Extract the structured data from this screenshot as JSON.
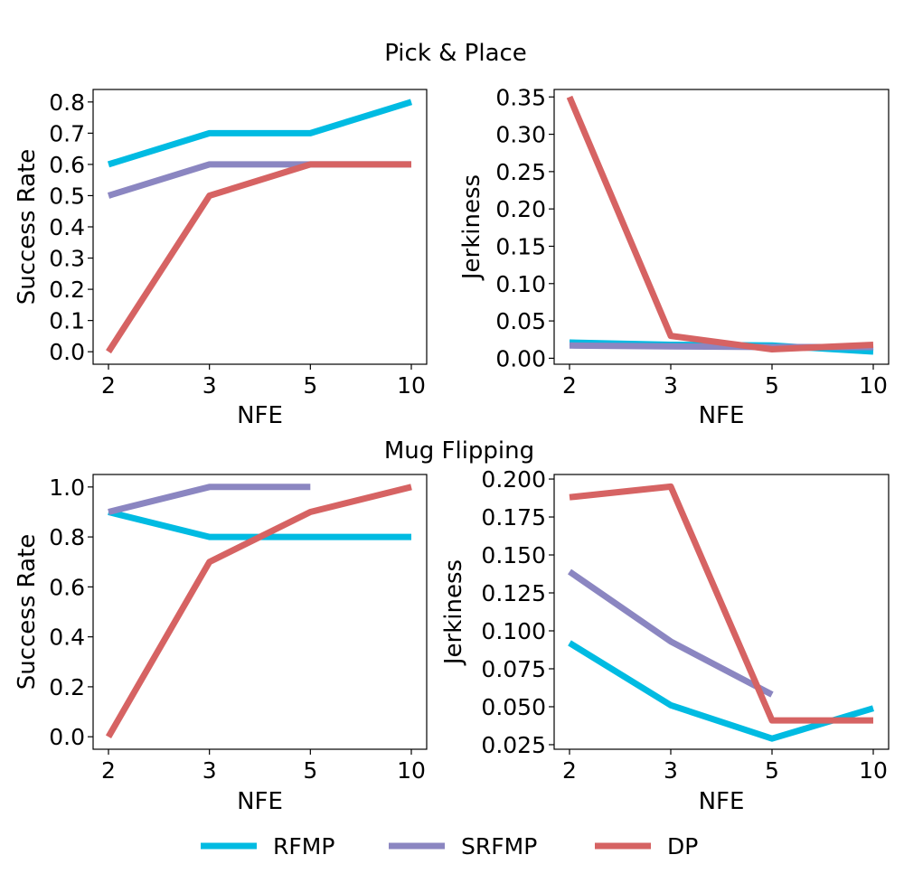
{
  "colors": {
    "RFMP": "#00bbe2",
    "SRFMP": "#8b86c1",
    "DP": "#d66363"
  },
  "legend": {
    "entries": [
      "RFMP",
      "SRFMP",
      "DP"
    ],
    "placement": "bottom-center"
  },
  "sections": [
    {
      "title": "Pick & Place"
    },
    {
      "title": "Mug Flipping"
    }
  ],
  "chart_data": [
    {
      "type": "line",
      "section": "Pick & Place",
      "categories": [
        "2",
        "3",
        "5",
        "10"
      ],
      "xlabel": "NFE",
      "ylabel": "Success Rate",
      "ylim": [
        -0.04,
        0.84
      ],
      "yticks": [
        "0.0",
        "0.1",
        "0.2",
        "0.3",
        "0.4",
        "0.5",
        "0.6",
        "0.7",
        "0.8"
      ],
      "ytick_values": [
        0,
        0.1,
        0.2,
        0.3,
        0.4,
        0.5,
        0.6,
        0.7,
        0.8
      ],
      "series": [
        {
          "name": "RFMP",
          "values": [
            0.6,
            0.7,
            0.7,
            0.8
          ]
        },
        {
          "name": "SRFMP",
          "values": [
            0.5,
            0.6,
            0.6,
            0.6
          ]
        },
        {
          "name": "DP",
          "values": [
            0.0,
            0.5,
            0.6,
            0.6
          ]
        }
      ]
    },
    {
      "type": "line",
      "section": "Pick & Place",
      "categories": [
        "2",
        "3",
        "5",
        "10"
      ],
      "xlabel": "NFE",
      "ylabel": "Jerkiness",
      "ylim": [
        -0.008,
        0.36
      ],
      "yticks": [
        "0.00",
        "0.05",
        "0.10",
        "0.15",
        "0.20",
        "0.25",
        "0.30",
        "0.35"
      ],
      "ytick_values": [
        0,
        0.05,
        0.1,
        0.15,
        0.2,
        0.25,
        0.3,
        0.35
      ],
      "series": [
        {
          "name": "RFMP",
          "values": [
            0.021,
            0.018,
            0.017,
            0.009
          ]
        },
        {
          "name": "SRFMP",
          "values": [
            0.017,
            0.016,
            0.015,
            0.015
          ]
        },
        {
          "name": "DP",
          "values": [
            0.35,
            0.03,
            0.012,
            0.018
          ]
        }
      ]
    },
    {
      "type": "line",
      "section": "Mug Flipping",
      "categories": [
        "2",
        "3",
        "5",
        "10"
      ],
      "xlabel": "NFE",
      "ylabel": "Success Rate",
      "ylim": [
        -0.05,
        1.05
      ],
      "yticks": [
        "0.0",
        "0.2",
        "0.4",
        "0.6",
        "0.8",
        "1.0"
      ],
      "ytick_values": [
        0,
        0.2,
        0.4,
        0.6,
        0.8,
        1.0
      ],
      "series": [
        {
          "name": "RFMP",
          "values": [
            0.9,
            0.8,
            0.8,
            0.8
          ]
        },
        {
          "name": "SRFMP",
          "values": [
            0.9,
            1.0,
            1.0,
            null
          ]
        },
        {
          "name": "DP",
          "values": [
            0.0,
            0.7,
            0.9,
            1.0
          ]
        }
      ]
    },
    {
      "type": "line",
      "section": "Mug Flipping",
      "categories": [
        "2",
        "3",
        "5",
        "10"
      ],
      "xlabel": "NFE",
      "ylabel": "Jerkiness",
      "ylim": [
        0.022,
        0.203
      ],
      "yticks": [
        "0.025",
        "0.050",
        "0.075",
        "0.100",
        "0.125",
        "0.150",
        "0.175",
        "0.200"
      ],
      "ytick_values": [
        0.025,
        0.05,
        0.075,
        0.1,
        0.125,
        0.15,
        0.175,
        0.2
      ],
      "series": [
        {
          "name": "RFMP",
          "values": [
            0.092,
            0.051,
            0.029,
            0.049
          ]
        },
        {
          "name": "SRFMP",
          "values": [
            0.139,
            0.093,
            0.058,
            null
          ]
        },
        {
          "name": "DP",
          "values": [
            0.188,
            0.195,
            0.041,
            0.041
          ]
        }
      ]
    }
  ]
}
